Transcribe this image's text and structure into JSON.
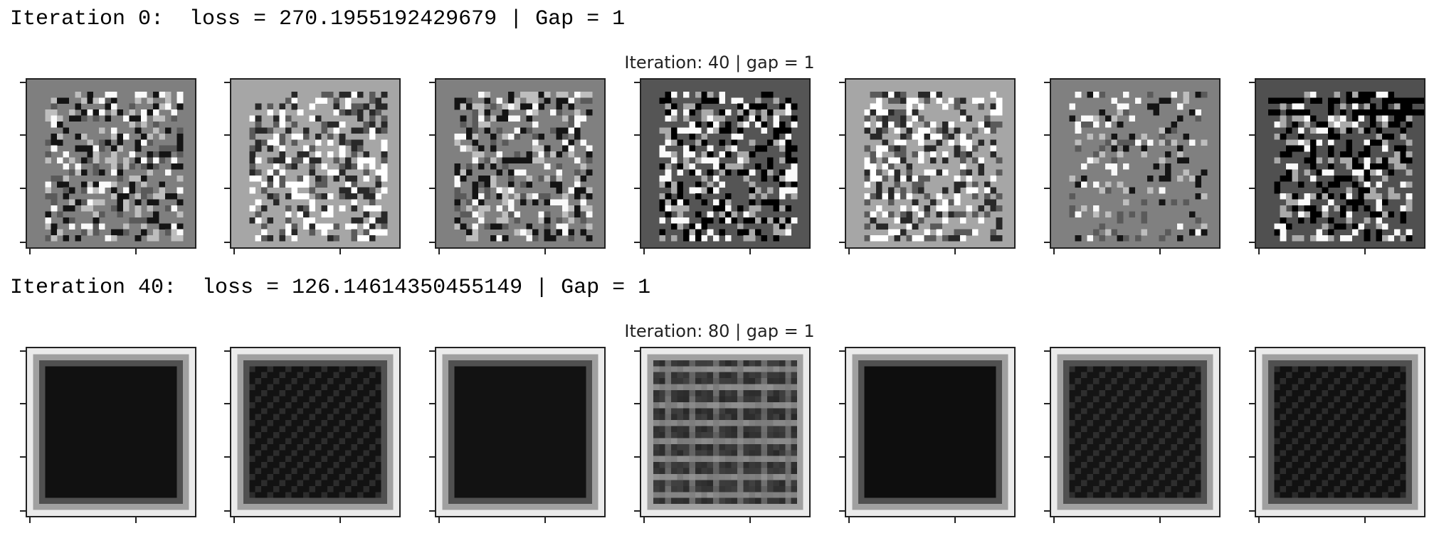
{
  "output": {
    "blocks": [
      {
        "log_text": "Iteration 0:  loss = 270.1955192429679 | Gap = 1",
        "figure_title": "Iteration: 40 | gap = 1",
        "pattern": "noise",
        "panels": [
          {
            "background": "#7f7f7f",
            "style": "mixed"
          },
          {
            "background": "#a6a6a6",
            "style": "light"
          },
          {
            "background": "#808080",
            "style": "mixed"
          },
          {
            "background": "#555555",
            "style": "dark"
          },
          {
            "background": "#a6a6a6",
            "style": "light"
          },
          {
            "background": "#808080",
            "style": "sparse"
          },
          {
            "background": "#505050",
            "style": "dark-lines"
          }
        ]
      },
      {
        "log_text": "Iteration 40:  loss = 126.14614350455149 | Gap = 1",
        "figure_title": "Iteration: 80 | gap = 1",
        "pattern": "vignette",
        "panels": [
          {
            "background": "#111111",
            "style": "solid"
          },
          {
            "background": "#161616",
            "style": "grid"
          },
          {
            "background": "#121212",
            "style": "solid"
          },
          {
            "background": "#3a3a3a",
            "style": "stripes"
          },
          {
            "background": "#0e0e0e",
            "style": "solid"
          },
          {
            "background": "#181818",
            "style": "grid"
          },
          {
            "background": "#151515",
            "style": "grid"
          }
        ]
      }
    ]
  }
}
